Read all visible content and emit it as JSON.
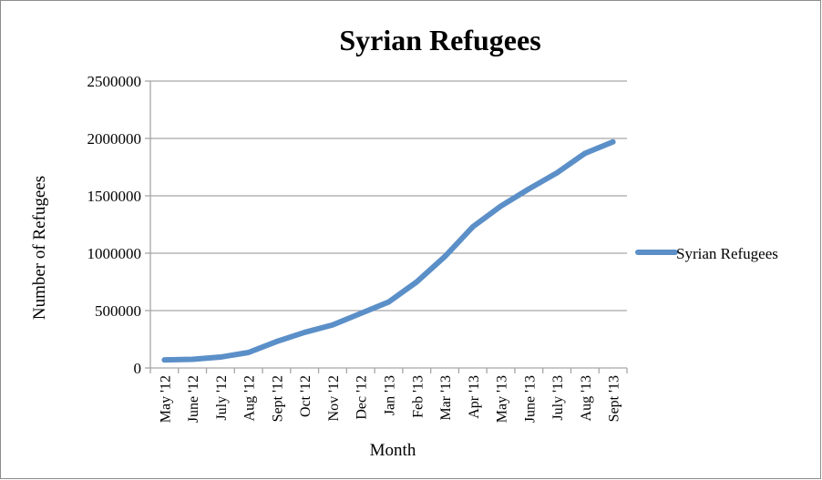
{
  "chart_data": {
    "type": "line",
    "title": "Syrian Refugees",
    "xlabel": "Month",
    "ylabel": "Number of Refugees",
    "categories": [
      "May '12",
      "June '12",
      "July '12",
      "Aug '12",
      "Sept '12",
      "Oct '12",
      "Nov '12",
      "Dec '12",
      "Jan '13",
      "Feb '13",
      "Mar '13",
      "Apr '13",
      "May '13",
      "June '13",
      "July '13",
      "Aug '13",
      "Sept '13"
    ],
    "series": [
      {
        "name": "Syrian Refugees",
        "color": "#5b8fc8",
        "values": [
          70000,
          75000,
          95000,
          135000,
          230000,
          310000,
          375000,
          475000,
          575000,
          750000,
          970000,
          1230000,
          1410000,
          1560000,
          1700000,
          1870000,
          1970000
        ]
      }
    ],
    "ylim": [
      0,
      2500000
    ],
    "yticks": [
      "0",
      "500000",
      "1000000",
      "1500000",
      "2000000",
      "2500000"
    ],
    "grid": true,
    "legend": "right"
  }
}
